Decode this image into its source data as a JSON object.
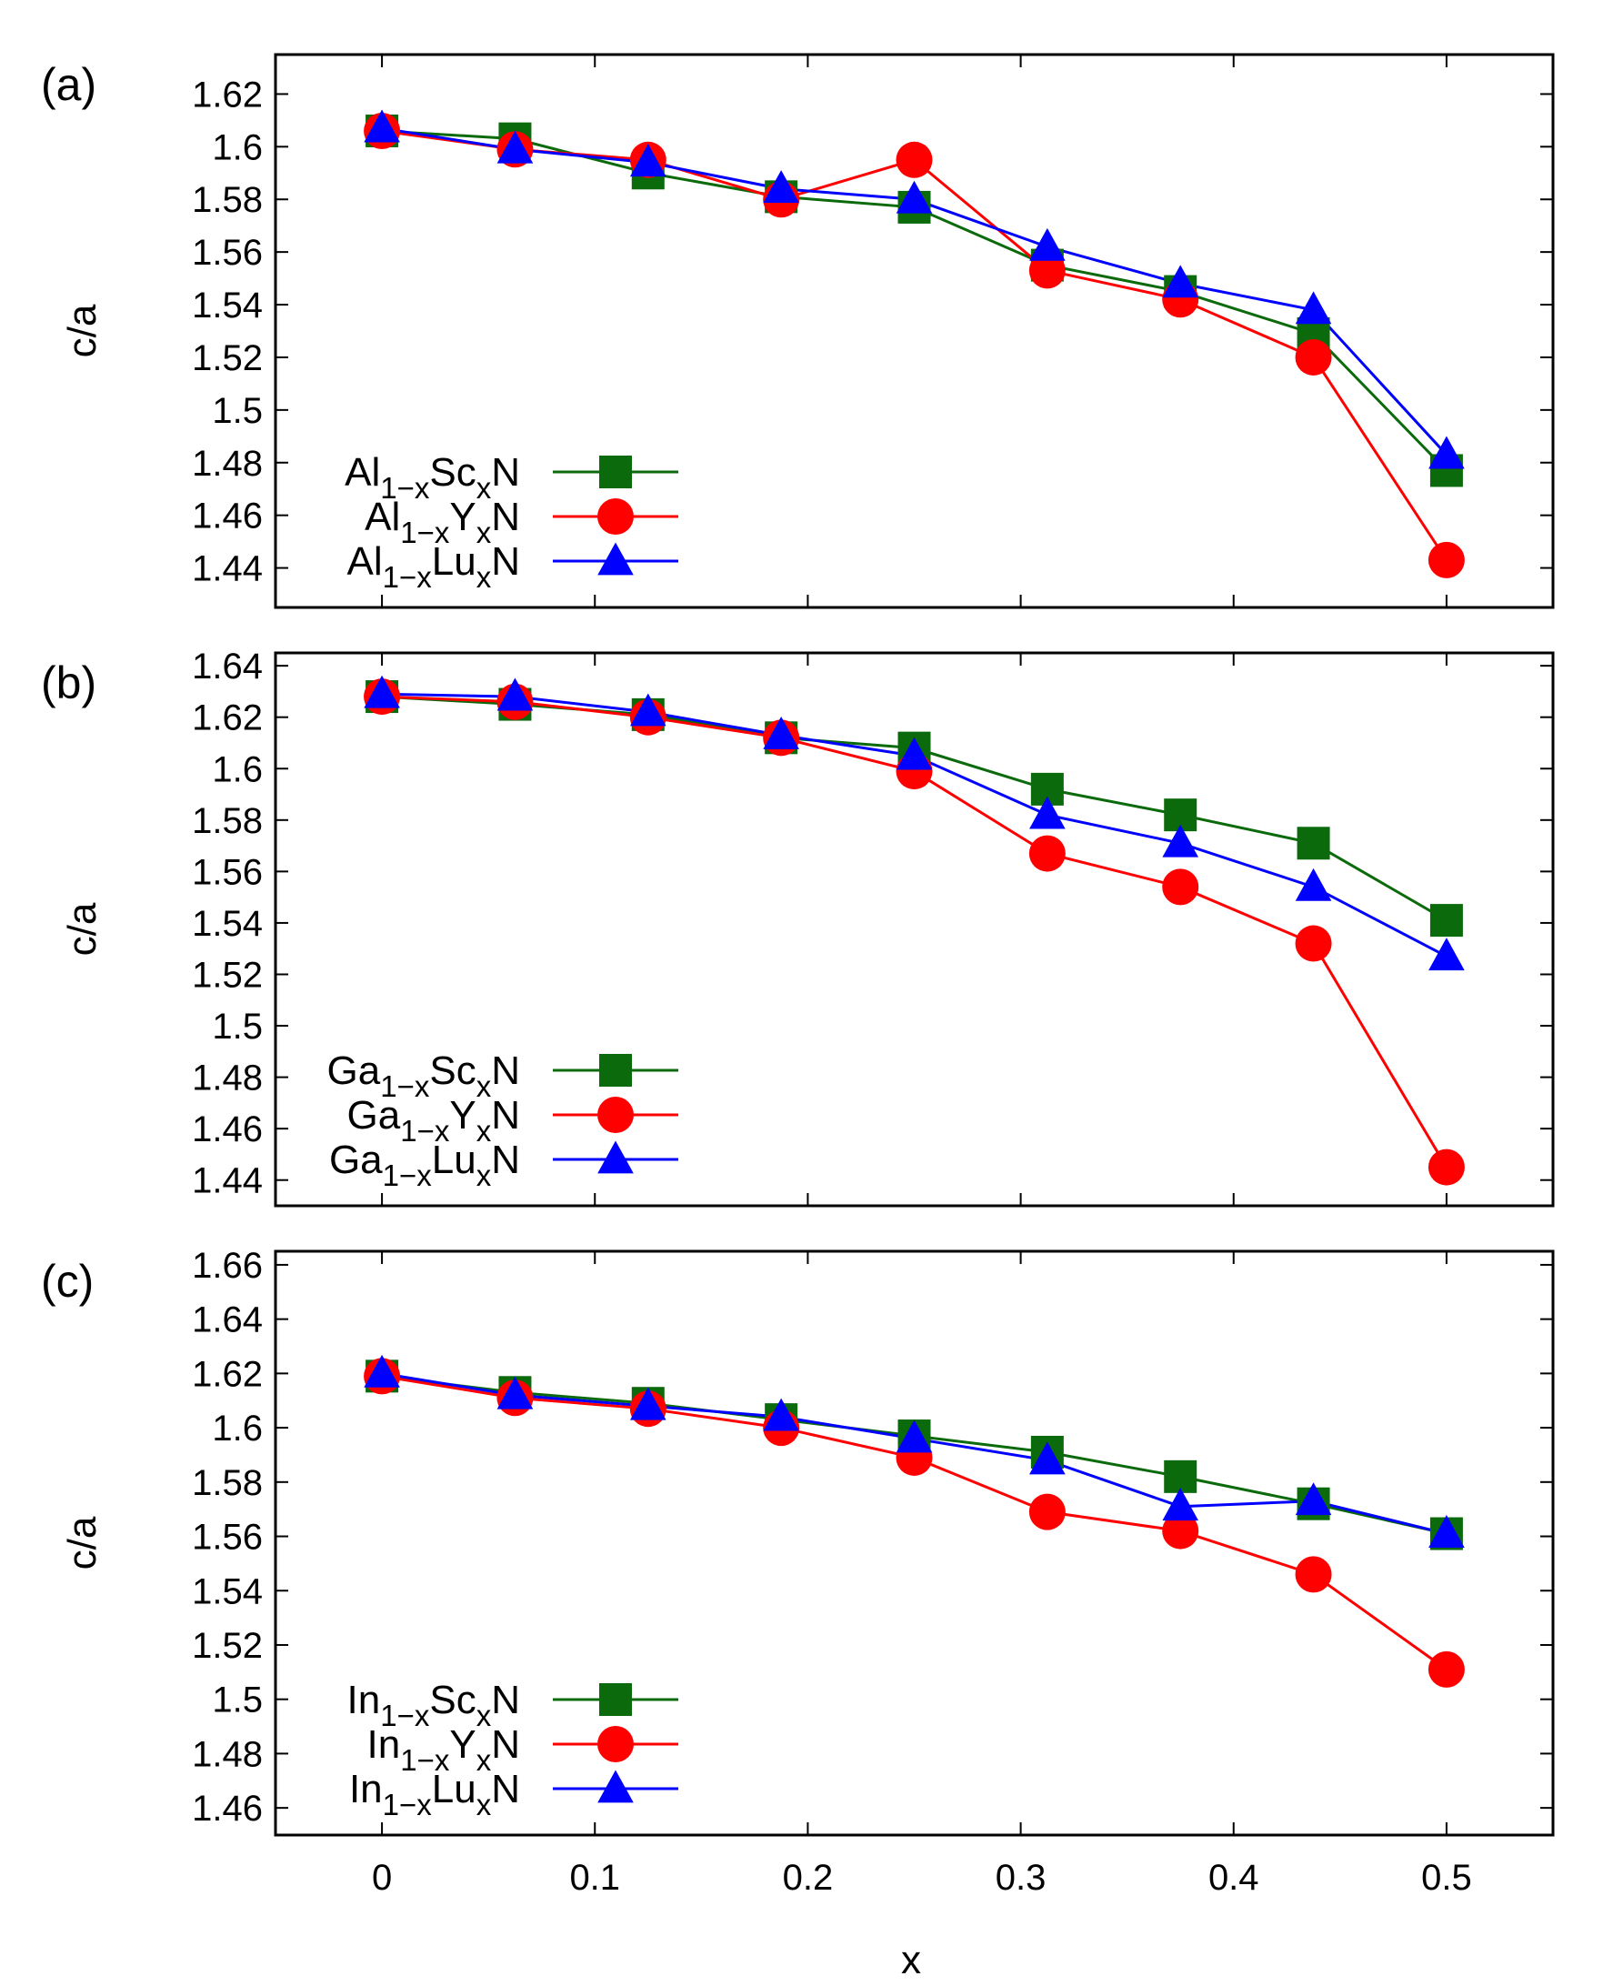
{
  "figure": {
    "xlabel": "x",
    "x_ticks": [
      "0",
      "0.1",
      "0.2",
      "0.3",
      "0.4",
      "0.5"
    ]
  },
  "chart_data": [
    {
      "type": "line",
      "panel_label": "(a)",
      "ylabel": "c/a",
      "xlabel": "x",
      "xlim": [
        -0.05,
        0.55
      ],
      "ylim": [
        1.425,
        1.635
      ],
      "y_ticks": [
        "1.44",
        "1.46",
        "1.48",
        "1.5",
        "1.52",
        "1.54",
        "1.56",
        "1.58",
        "1.6",
        "1.62"
      ],
      "x": [
        0,
        0.0625,
        0.125,
        0.1875,
        0.25,
        0.3125,
        0.375,
        0.4375,
        0.5
      ],
      "legend_position": "bottom-left",
      "series": [
        {
          "name": "Al1-xScxN",
          "legend": {
            "base": "Al",
            "sub1": "1−x",
            "mid": "Sc",
            "sub2": "x",
            "end": "N"
          },
          "color": "#0b6a0b",
          "marker": "square",
          "values": [
            1.606,
            1.603,
            1.59,
            1.581,
            1.577,
            1.555,
            1.545,
            1.529,
            1.477
          ]
        },
        {
          "name": "Al1-xYxN",
          "legend": {
            "base": "Al",
            "sub1": "1−x",
            "mid": "Y",
            "sub2": "x",
            "end": "N"
          },
          "color": "#ff0000",
          "marker": "circle",
          "values": [
            1.606,
            1.599,
            1.595,
            1.58,
            1.595,
            1.553,
            1.542,
            1.52,
            1.443
          ]
        },
        {
          "name": "Al1-xLuxN",
          "legend": {
            "base": "Al",
            "sub1": "1−x",
            "mid": "Lu",
            "sub2": "x",
            "end": "N"
          },
          "color": "#0000ff",
          "marker": "triangle",
          "values": [
            1.607,
            1.599,
            1.594,
            1.584,
            1.58,
            1.562,
            1.548,
            1.538,
            1.483
          ]
        }
      ]
    },
    {
      "type": "line",
      "panel_label": "(b)",
      "ylabel": "c/a",
      "xlabel": "x",
      "xlim": [
        -0.05,
        0.55
      ],
      "ylim": [
        1.43,
        1.645
      ],
      "y_ticks": [
        "1.44",
        "1.46",
        "1.48",
        "1.5",
        "1.52",
        "1.54",
        "1.56",
        "1.58",
        "1.6",
        "1.62",
        "1.64"
      ],
      "x": [
        0,
        0.0625,
        0.125,
        0.1875,
        0.25,
        0.3125,
        0.375,
        0.4375,
        0.5
      ],
      "legend_position": "bottom-left",
      "series": [
        {
          "name": "Ga1-xScxN",
          "legend": {
            "base": "Ga",
            "sub1": "1−x",
            "mid": "Sc",
            "sub2": "x",
            "end": "N"
          },
          "color": "#0b6a0b",
          "marker": "square",
          "values": [
            1.628,
            1.625,
            1.621,
            1.612,
            1.608,
            1.592,
            1.582,
            1.571,
            1.541
          ]
        },
        {
          "name": "Ga1-xYxN",
          "legend": {
            "base": "Ga",
            "sub1": "1−x",
            "mid": "Y",
            "sub2": "x",
            "end": "N"
          },
          "color": "#ff0000",
          "marker": "circle",
          "values": [
            1.628,
            1.626,
            1.62,
            1.612,
            1.599,
            1.567,
            1.554,
            1.532,
            1.445
          ]
        },
        {
          "name": "Ga1-xLuxN",
          "legend": {
            "base": "Ga",
            "sub1": "1−x",
            "mid": "Lu",
            "sub2": "x",
            "end": "N"
          },
          "color": "#0000ff",
          "marker": "triangle",
          "values": [
            1.629,
            1.628,
            1.622,
            1.613,
            1.605,
            1.582,
            1.571,
            1.554,
            1.527
          ]
        }
      ]
    },
    {
      "type": "line",
      "panel_label": "(c)",
      "ylabel": "c/a",
      "xlabel": "x",
      "xlim": [
        -0.05,
        0.55
      ],
      "ylim": [
        1.45,
        1.665
      ],
      "y_ticks": [
        "1.46",
        "1.48",
        "1.5",
        "1.52",
        "1.54",
        "1.56",
        "1.58",
        "1.6",
        "1.62",
        "1.64",
        "1.66"
      ],
      "x": [
        0,
        0.0625,
        0.125,
        0.1875,
        0.25,
        0.3125,
        0.375,
        0.4375,
        0.5
      ],
      "legend_position": "bottom-left",
      "series": [
        {
          "name": "In1-xScxN",
          "legend": {
            "base": "In",
            "sub1": "1−x",
            "mid": "Sc",
            "sub2": "x",
            "end": "N"
          },
          "color": "#0b6a0b",
          "marker": "square",
          "values": [
            1.619,
            1.613,
            1.609,
            1.603,
            1.597,
            1.591,
            1.582,
            1.572,
            1.561
          ]
        },
        {
          "name": "In1-xYxN",
          "legend": {
            "base": "In",
            "sub1": "1−x",
            "mid": "Y",
            "sub2": "x",
            "end": "N"
          },
          "color": "#ff0000",
          "marker": "circle",
          "values": [
            1.619,
            1.611,
            1.607,
            1.6,
            1.589,
            1.569,
            1.562,
            1.546,
            1.511
          ]
        },
        {
          "name": "In1-xLuxN",
          "legend": {
            "base": "In",
            "sub1": "1−x",
            "mid": "Lu",
            "sub2": "x",
            "end": "N"
          },
          "color": "#0000ff",
          "marker": "triangle",
          "values": [
            1.62,
            1.612,
            1.608,
            1.604,
            1.596,
            1.588,
            1.571,
            1.573,
            1.561
          ]
        }
      ]
    }
  ]
}
